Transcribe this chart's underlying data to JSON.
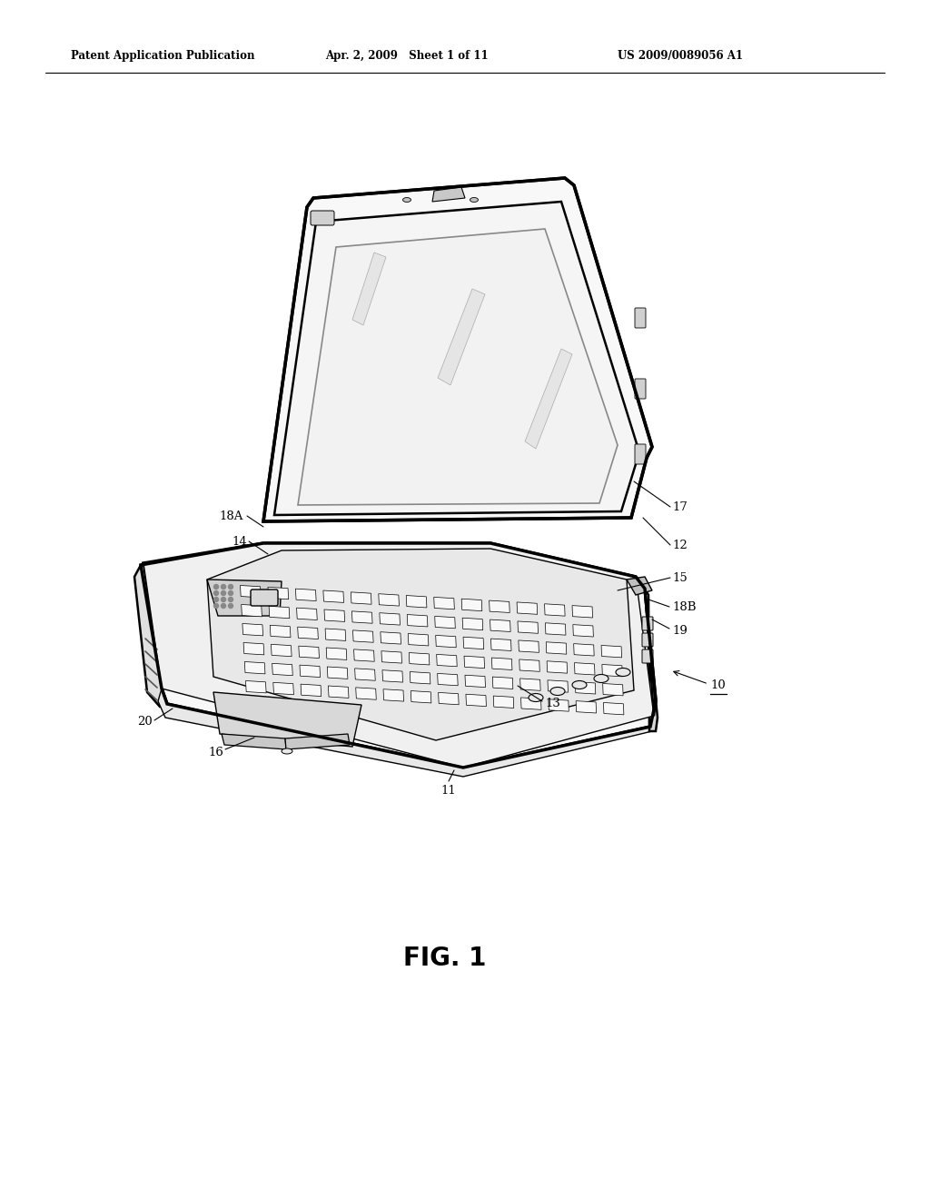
{
  "bg_color": "#ffffff",
  "header_left": "Patent Application Publication",
  "header_mid": "Apr. 2, 2009   Sheet 1 of 11",
  "header_right": "US 2009/0089056 A1",
  "fig_caption": "FIG. 1",
  "lw_main": 1.8,
  "lw_thin": 1.0,
  "lw_thick": 2.5,
  "label_fontsize": 9.5,
  "header_fontsize": 8.5,
  "caption_fontsize": 20
}
